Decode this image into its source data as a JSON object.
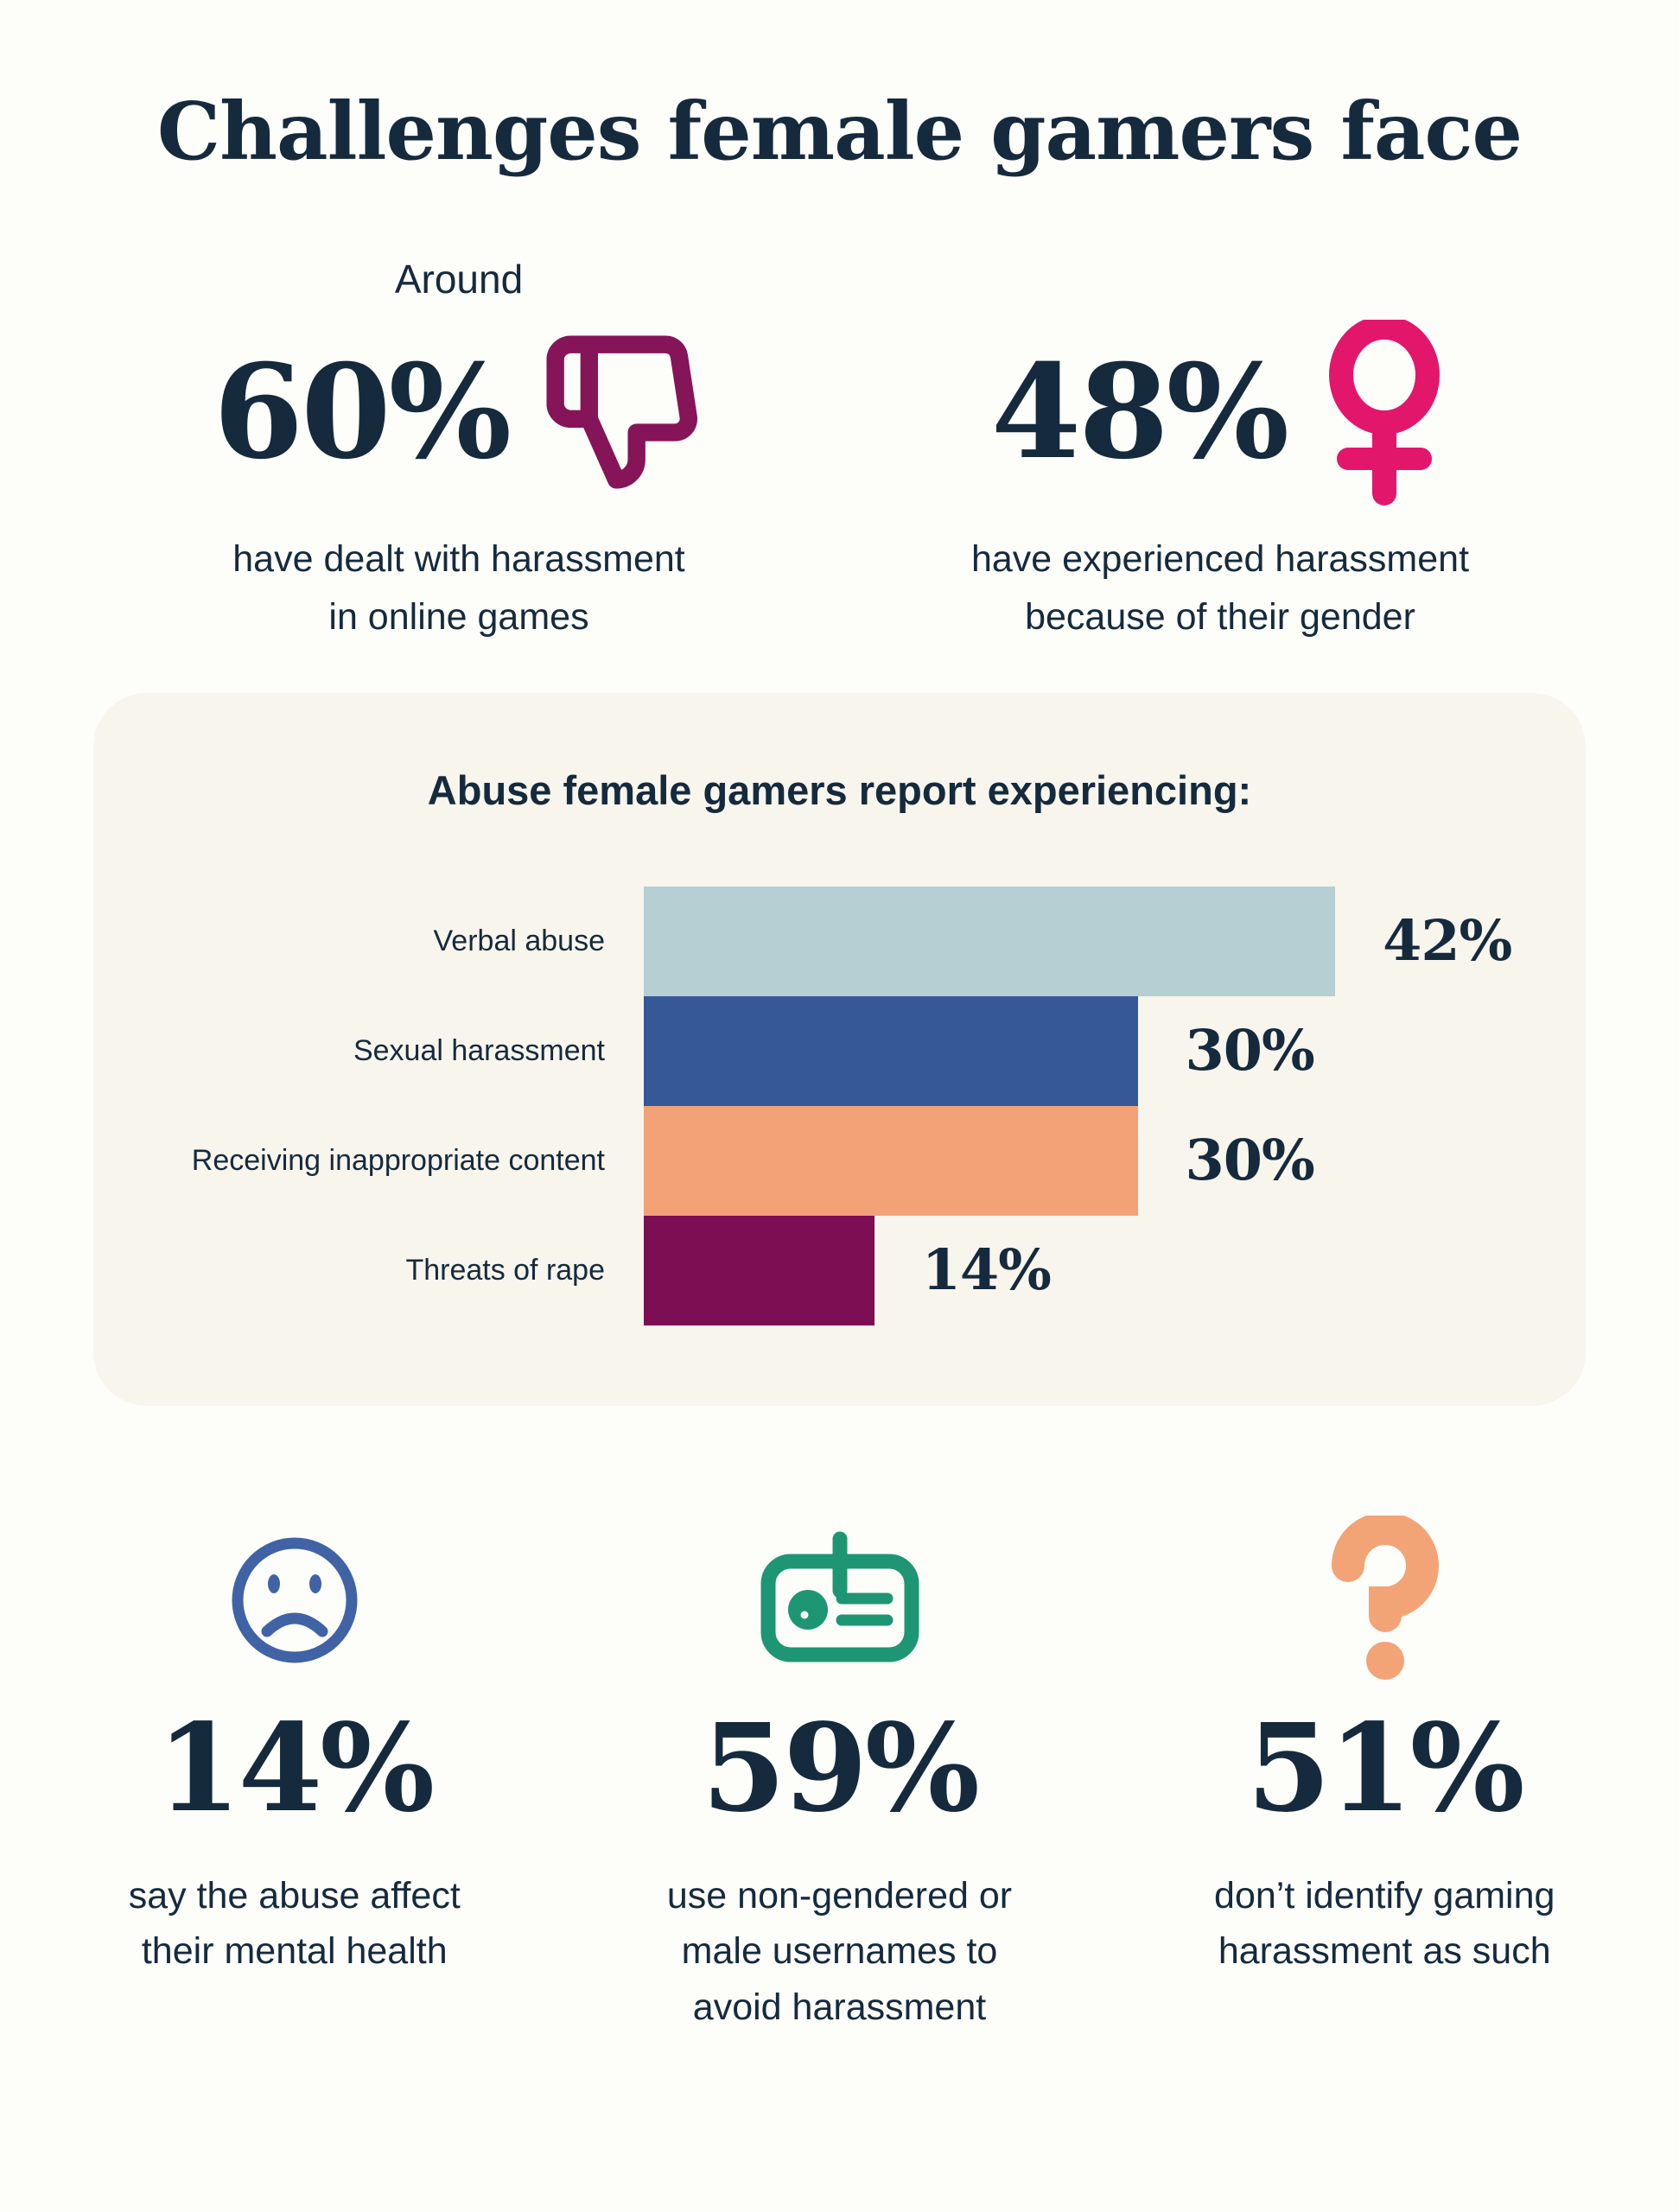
{
  "page": {
    "background": "#FDFDFA",
    "text_color": "#152A3D"
  },
  "title": "Challenges female gamers face",
  "top_stats": [
    {
      "prefix": "Around",
      "value": "60%",
      "icon": "thumbs-down-icon",
      "icon_color": "#851558",
      "caption": [
        "have dealt with harassment",
        "in online games"
      ]
    },
    {
      "prefix": "",
      "value": "48%",
      "icon": "female-icon",
      "icon_color": "#E2176B",
      "caption": [
        "have experienced harassment",
        "because of their gender"
      ]
    }
  ],
  "chart_panel": {
    "background": "#F8F5ED",
    "title": "Abuse female gamers report experiencing:"
  },
  "chart_data": {
    "type": "bar",
    "orientation": "horizontal",
    "title": "Abuse female gamers report experiencing:",
    "categories": [
      "Verbal abuse",
      "Sexual harassment",
      "Receiving inappropriate content",
      "Threats of rape"
    ],
    "values": [
      42,
      30,
      30,
      14
    ],
    "unit": "%",
    "value_labels": [
      "42%",
      "30%",
      "30%",
      "14%"
    ],
    "bar_colors": [
      "#B5CFD2",
      "#365897",
      "#F2A276",
      "#7E0E53"
    ],
    "xlim": [
      0,
      50
    ],
    "grid": false,
    "legend": false
  },
  "bottom_stats": [
    {
      "icon": "sad-face-icon",
      "icon_color": "#4063A6",
      "value": "14%",
      "caption": [
        "say the abuse affect",
        "their mental health"
      ]
    },
    {
      "icon": "id-badge-icon",
      "icon_color": "#1E9673",
      "value": "59%",
      "caption": [
        "use non-gendered or",
        "male usernames to",
        "avoid harassment"
      ]
    },
    {
      "icon": "question-mark-icon",
      "icon_color": "#F2A477",
      "value": "51%",
      "caption": [
        "don’t identify gaming",
        "harassment as such"
      ]
    }
  ]
}
